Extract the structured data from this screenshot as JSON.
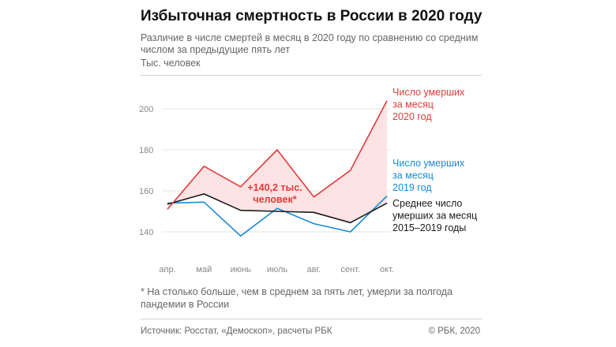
{
  "title": "Избыточная смертность в России в 2020 году",
  "subtitle": "Различие в числе смертей в месяц в 2020 году по сравнению со средним числом за предыдущие пять лет",
  "unit_label": "Тыс. человек",
  "footnote": "* На столько больше, чем в среднем за пять лет, умерли за полгода пандемии в России",
  "source": "Источник: Росстат, «Демоскоп», расчеты РБК",
  "copyright": "© РБК, 2020",
  "colors": {
    "red": "#e23b3b",
    "blue": "#1a8ad6",
    "black": "#1a1a1a",
    "fill": "#fde3e3",
    "grid": "#e6e6e6"
  },
  "chart_data": {
    "type": "line",
    "categories": [
      "апр.",
      "май",
      "июнь",
      "июль",
      "авг.",
      "сент.",
      "окт."
    ],
    "ylim": [
      130,
      210
    ],
    "yticks": [
      140,
      160,
      180,
      200
    ],
    "ytick_labels": [
      "140",
      "160",
      "180",
      "200"
    ],
    "grid": true,
    "series": [
      {
        "name": "Число умерших за месяц 2020 год",
        "label_lines": [
          "Число умерших",
          "за месяц",
          "2020 год"
        ],
        "color": "#e23b3b",
        "values": [
          151,
          172,
          162,
          180,
          157,
          170,
          204
        ]
      },
      {
        "name": "Число умерших за месяц 2019 год",
        "label_lines": [
          "Число умерших",
          "за месяц",
          "2019 год"
        ],
        "color": "#1a8ad6",
        "values": [
          154,
          154.5,
          138,
          151.5,
          144,
          140,
          157.5
        ]
      },
      {
        "name": "Среднее число умерших за месяц 2015–2019 годы",
        "label_lines": [
          "Среднее число",
          "умерших за месяц",
          "2015–2019 годы"
        ],
        "color": "#1a1a1a",
        "values": [
          153.5,
          158.5,
          150.5,
          150,
          149.5,
          144.5,
          154
        ]
      }
    ],
    "annotation": {
      "lines": [
        "+140,2 тыс.",
        "человек*"
      ]
    }
  }
}
